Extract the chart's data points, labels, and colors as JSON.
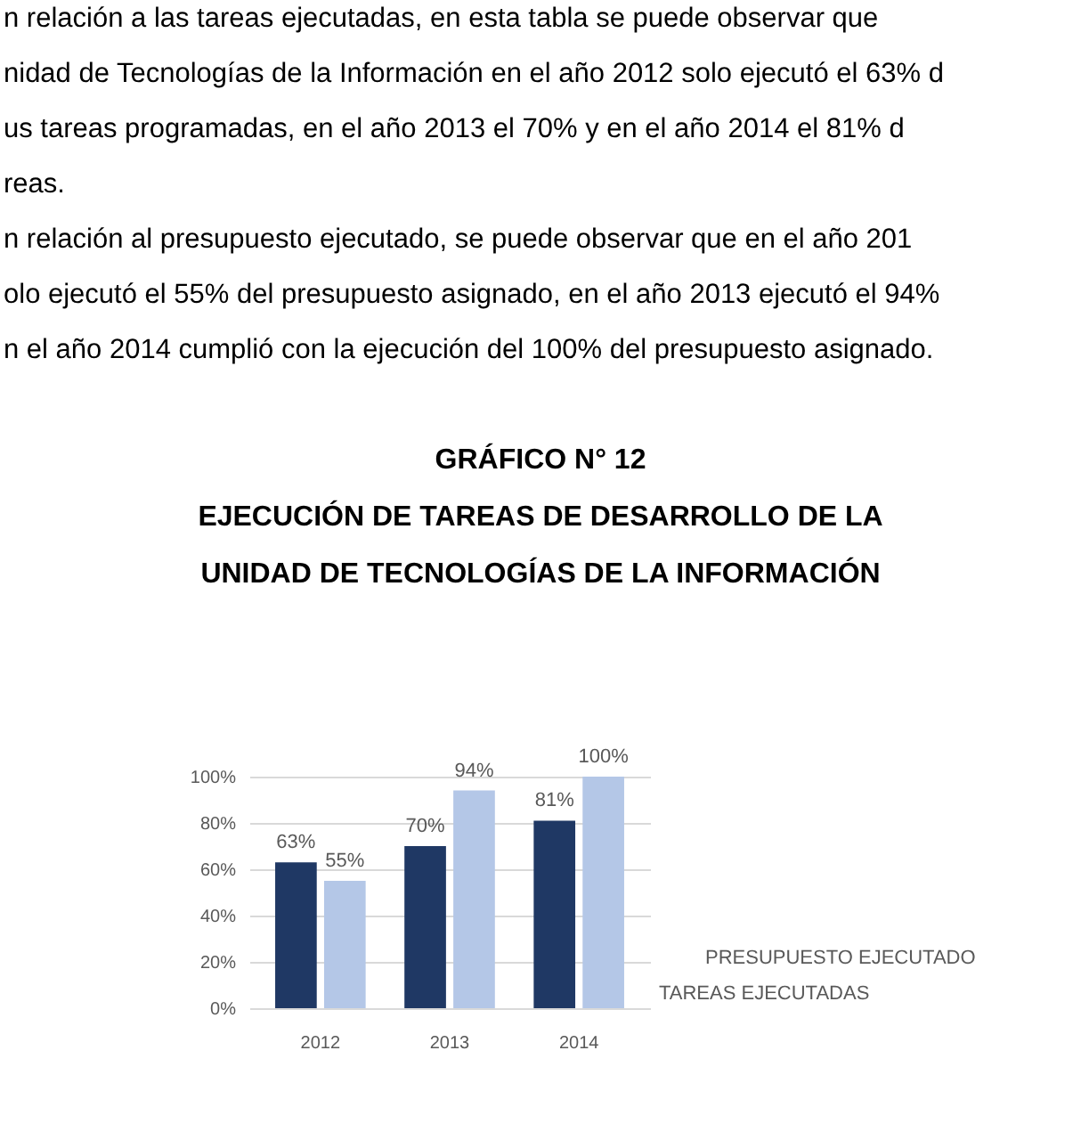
{
  "chart_data": {
    "type": "bar",
    "title": "GRÁFICO N° 12",
    "subtitle": "EJECUCIÓN DE TAREAS DE DESARROLLO DE LA\nUNIDAD DE TECNOLOGÍAS DE LA INFORMACIÓN",
    "annotations": [
      "n relación a las tareas ejecutadas, en esta tabla se puede observar que",
      "nidad de Tecnologías de la Información en el año 2012 solo ejecutó el 63% d",
      "us tareas programadas, en el año 2013 el 70% y en el año 2014 el 81% d",
      "reas.",
      "n relación al presupuesto ejecutado, se puede observar que en el año 201",
      "olo ejecutó el 55% del presupuesto asignado, en el año 2013 ejecutó el 94%",
      "n el año 2014 cumplió con la ejecución del 100% del presupuesto asignado."
    ],
    "categories": [
      "2012",
      "2013",
      "2014"
    ],
    "series": [
      {
        "name": "TAREAS EJECUTADAS",
        "color": "#1f3864",
        "values": [
          63,
          70,
          81
        ],
        "value_labels": [
          "63%",
          "70%",
          "81%"
        ]
      },
      {
        "name": "PRESUPUESTO EJECUTADO",
        "color": "#b4c7e7",
        "values": [
          55,
          94,
          100
        ],
        "value_labels": [
          "55%",
          "94%",
          "100%"
        ]
      }
    ],
    "ylim": [
      0,
      100
    ],
    "yticks": [
      {
        "value": 0,
        "label": "0%"
      },
      {
        "value": 20,
        "label": "20%"
      },
      {
        "value": 40,
        "label": "40%"
      },
      {
        "value": 60,
        "label": "60%"
      },
      {
        "value": 80,
        "label": "80%"
      },
      {
        "value": 100,
        "label": "100%"
      }
    ],
    "grid": "y"
  }
}
